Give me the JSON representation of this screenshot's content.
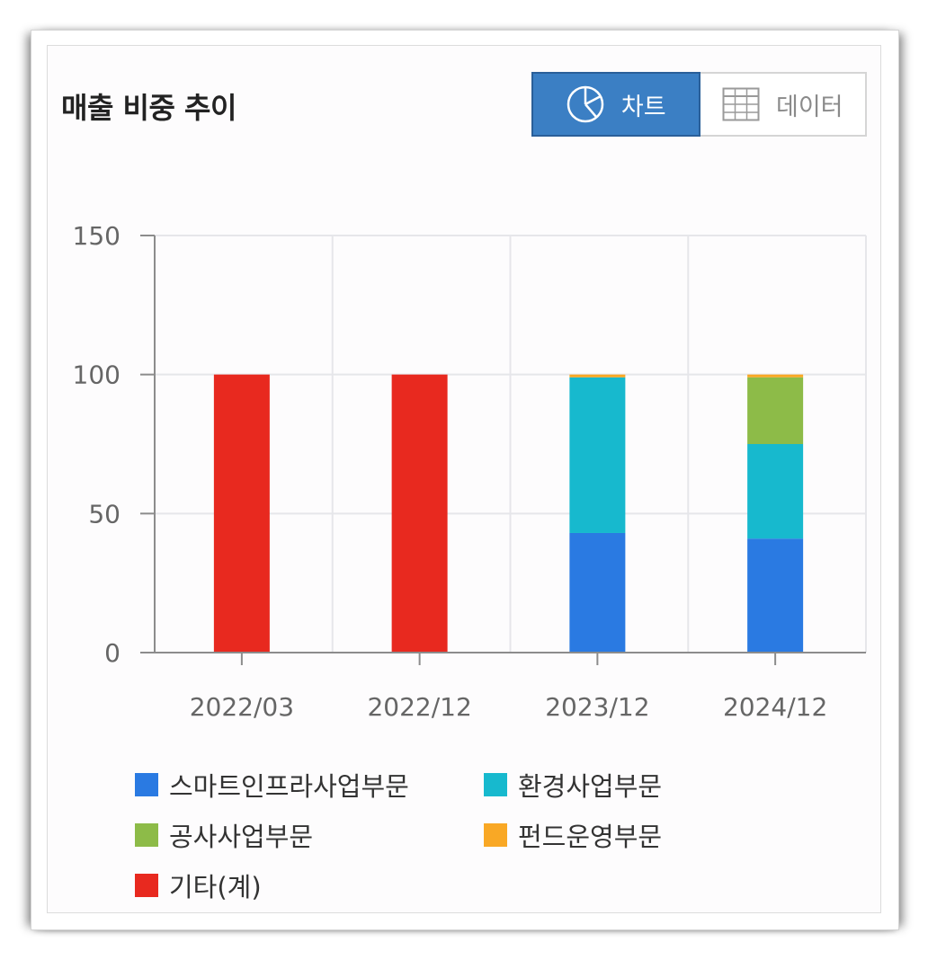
{
  "header": {
    "title": "매출 비중 추이"
  },
  "toggle": {
    "chart_label": "차트",
    "data_label": "데이터",
    "active": "chart"
  },
  "colors": {
    "smart_infra": "#2a7ae2",
    "environment": "#17b9ce",
    "construction": "#8dbb48",
    "fund": "#f9a825",
    "other": "#e8291f"
  },
  "chart_data": {
    "type": "bar",
    "stacked": true,
    "categories": [
      "2022/03",
      "2022/12",
      "2023/12",
      "2024/12"
    ],
    "ylim": [
      0,
      150
    ],
    "yticks": [
      0,
      50,
      100,
      150
    ],
    "grid": true,
    "legend_position": "bottom",
    "series": [
      {
        "name": "스마트인프라사업부문",
        "color": "#2a7ae2",
        "values": [
          0,
          0,
          43,
          41
        ]
      },
      {
        "name": "환경사업부문",
        "color": "#17b9ce",
        "values": [
          0,
          0,
          56,
          34
        ]
      },
      {
        "name": "공사사업부문",
        "color": "#8dbb48",
        "values": [
          0,
          0,
          0,
          24
        ]
      },
      {
        "name": "펀드운영부문",
        "color": "#f9a825",
        "values": [
          0,
          0,
          1,
          1
        ]
      },
      {
        "name": "기타(계)",
        "color": "#e8291f",
        "values": [
          100,
          100,
          0,
          0
        ]
      }
    ]
  }
}
